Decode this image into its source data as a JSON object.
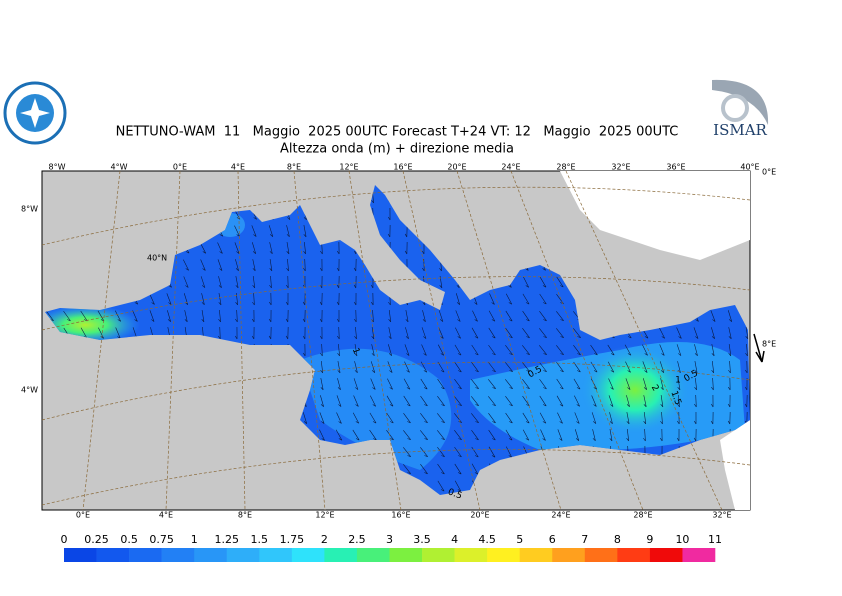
{
  "header": {
    "title": "NETTUNO-WAM  11   Maggio  2025 00UTC Forecast T+24 VT: 12   Maggio  2025 00UTC",
    "subtitle": "Altezza onda (m) + direzione media",
    "logo_right": "ISMAR"
  },
  "map": {
    "top_labels": [
      "8°W",
      "4°W",
      "0°E",
      "4°E",
      "8°E",
      "12°E",
      "16°E",
      "20°E",
      "24°E",
      "28°E",
      "32°E",
      "36°E",
      "40°E"
    ],
    "bottom_labels": [
      "0°E",
      "4°E",
      "8°E",
      "12°E",
      "16°E",
      "20°E",
      "24°E",
      "28°E",
      "32°E"
    ],
    "left_labels": [
      "8°W",
      "4°W"
    ],
    "right_labels": [
      "0°E",
      "8°E"
    ],
    "inner_labels": [
      "40°N"
    ],
    "contour_labels": [
      "0.5",
      "2",
      "1",
      "1.5",
      "0.5",
      "1",
      "0.5"
    ]
  },
  "colorbar": {
    "ticks": [
      0,
      0.25,
      0.5,
      0.75,
      1,
      1.25,
      1.5,
      1.75,
      2,
      2.5,
      3,
      3.5,
      4,
      4.5,
      5,
      6,
      7,
      8,
      9,
      10,
      11
    ],
    "colors": [
      "#0a46e6",
      "#1258ee",
      "#1a6af2",
      "#2280f5",
      "#2896f7",
      "#2eaef9",
      "#30c6fb",
      "#2ee2fb",
      "#28f0b4",
      "#48f07a",
      "#7cf040",
      "#b0f032",
      "#dcf02a",
      "#fff020",
      "#ffcc20",
      "#ffa01e",
      "#ff7018",
      "#ff3c14",
      "#f00a0a",
      "#f02aa0"
    ]
  }
}
